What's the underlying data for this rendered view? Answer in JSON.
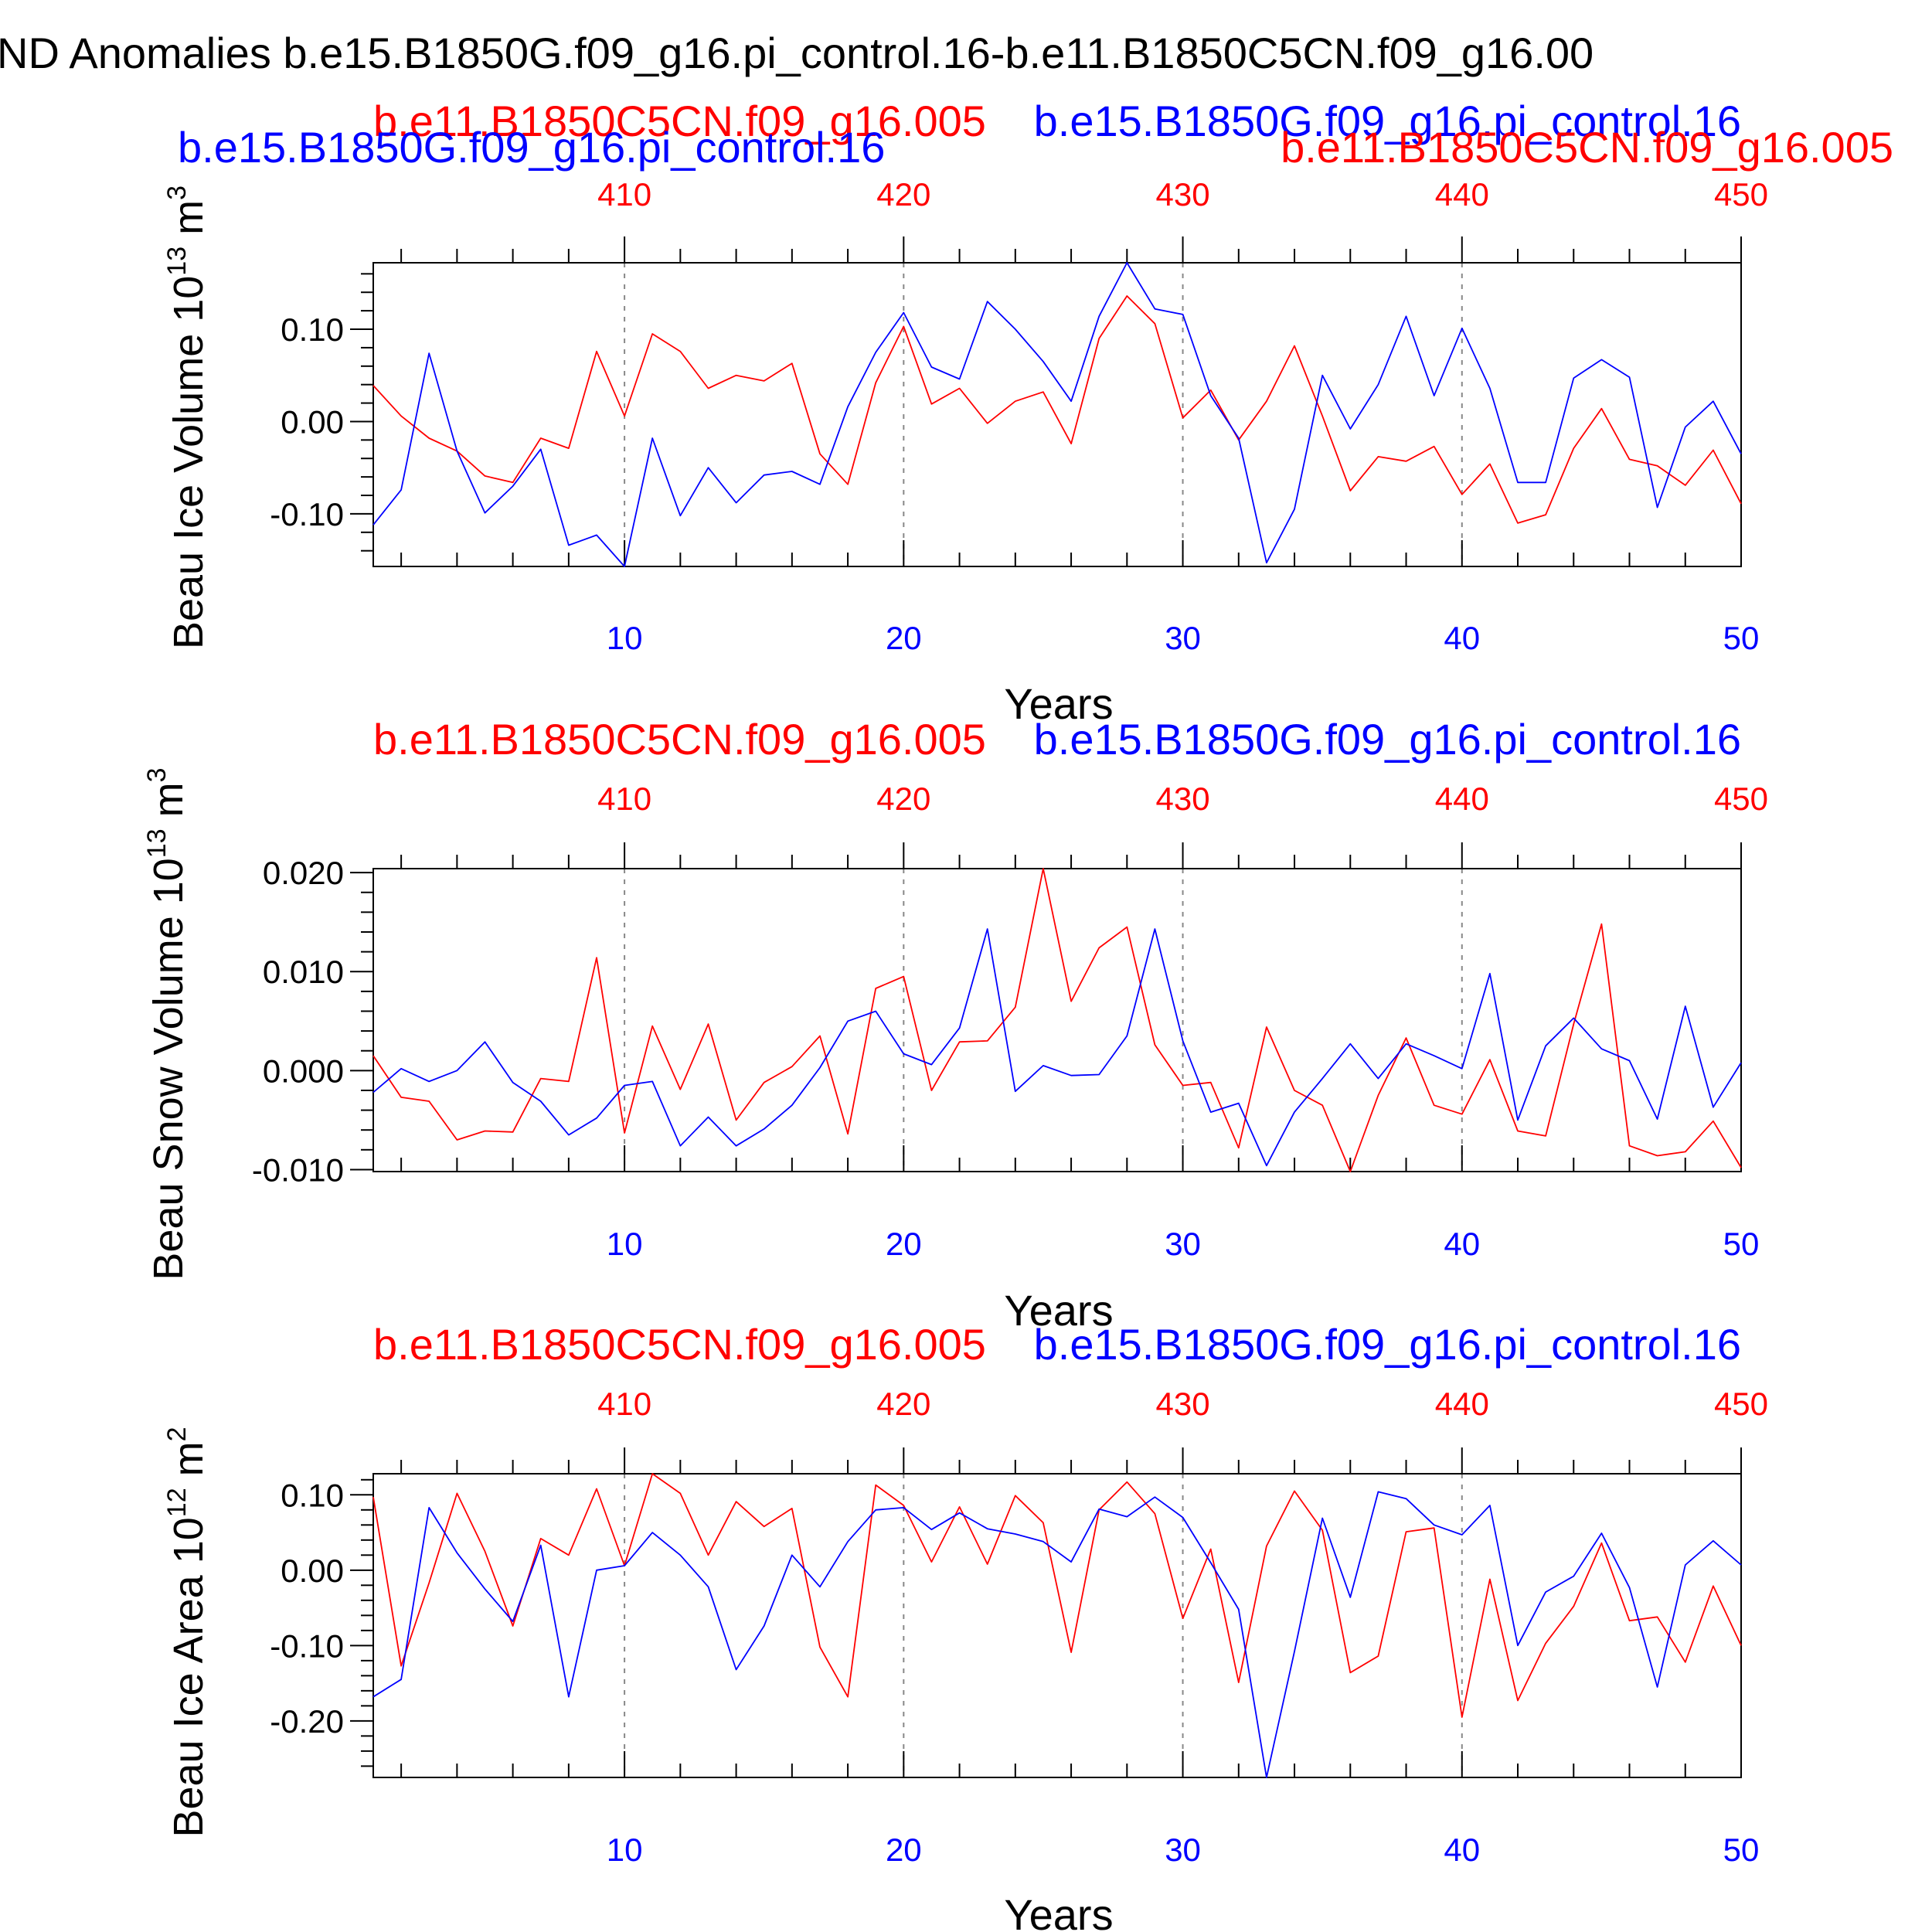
{
  "title": "ND Anomalies b.e15.B1850G.f09_g16.pi_control.16-b.e11.B1850C5CN.f09_g16.00",
  "series_names": {
    "red": "b.e11.B1850C5CN.f09_g16.005",
    "blue": "b.e15.B1850G.f09_g16.pi_control.16"
  },
  "colors": {
    "red": "#ff0000",
    "blue": "#0000ff",
    "axis": "#000000",
    "grid": "#888888"
  },
  "chart_data": [
    {
      "type": "line",
      "ylabel_main": "Beau Ice Volume 10",
      "ylabel_exp": "13",
      "ylabel_unit": " m",
      "ylabel_unit_exp": "3",
      "xlabel": "Years",
      "xlim": [
        1,
        50
      ],
      "ylim": [
        -0.157,
        0.172
      ],
      "x_ticks": [
        10,
        20,
        30,
        40,
        50
      ],
      "x_tick_labels": [
        "10",
        "20",
        "30",
        "40",
        "50"
      ],
      "top_ticks": [
        "410",
        "420",
        "430",
        "440",
        "450"
      ],
      "y_ticks": [
        0.1,
        0.0,
        -0.1
      ],
      "y_tick_labels": [
        "0.10",
        "0.00",
        "-0.10"
      ],
      "grid": "vertical dashed at top-axis ticks",
      "series": [
        {
          "name": "b.e15.B1850G.f09_g16.pi_control.16",
          "color": "blue",
          "values": [
            -0.112,
            -0.074,
            0.074,
            -0.032,
            -0.099,
            -0.07,
            -0.03,
            -0.134,
            -0.123,
            -0.157,
            -0.018,
            -0.102,
            -0.05,
            -0.088,
            -0.058,
            -0.054,
            -0.068,
            0.016,
            0.075,
            0.118,
            0.059,
            0.046,
            0.13,
            0.1,
            0.065,
            0.022,
            0.114,
            0.172,
            0.122,
            0.116,
            0.028,
            -0.018,
            -0.153,
            -0.095,
            0.05,
            -0.008,
            0.04,
            0.114,
            0.028,
            0.101,
            0.036,
            -0.066,
            -0.066,
            0.047,
            0.067,
            0.048,
            -0.093,
            -0.006,
            0.022,
            -0.035
          ]
        },
        {
          "name": "b.e11.B1850C5CN.f09_g16.005",
          "color": "red",
          "values": [
            0.039,
            0.006,
            -0.018,
            -0.032,
            -0.059,
            -0.066,
            -0.018,
            -0.029,
            0.076,
            0.006,
            0.095,
            0.076,
            0.036,
            0.05,
            0.044,
            0.063,
            -0.035,
            -0.068,
            0.042,
            0.103,
            0.019,
            0.036,
            -0.002,
            0.022,
            0.032,
            -0.024,
            0.09,
            0.136,
            0.106,
            0.004,
            0.034,
            -0.02,
            0.022,
            0.082,
            0.006,
            -0.075,
            -0.038,
            -0.043,
            -0.027,
            -0.079,
            -0.046,
            -0.11,
            -0.101,
            -0.029,
            0.014,
            -0.041,
            -0.048,
            -0.069,
            -0.031,
            -0.089
          ]
        }
      ]
    },
    {
      "type": "line",
      "ylabel_main": "Beau Snow Volume 10",
      "ylabel_exp": "13",
      "ylabel_unit": " m",
      "ylabel_unit_exp": "3",
      "xlabel": "Years",
      "xlim": [
        1,
        50
      ],
      "ylim": [
        -0.0102,
        0.0204
      ],
      "x_ticks": [
        10,
        20,
        30,
        40,
        50
      ],
      "x_tick_labels": [
        "10",
        "20",
        "30",
        "40",
        "50"
      ],
      "top_ticks": [
        "410",
        "420",
        "430",
        "440",
        "450"
      ],
      "y_ticks": [
        0.02,
        0.01,
        0.0,
        -0.01
      ],
      "y_tick_labels": [
        "0.020",
        "0.010",
        "0.000",
        "-0.010"
      ],
      "grid": "vertical dashed at top-axis ticks",
      "series": [
        {
          "name": "b.e15.B1850G.f09_g16.pi_control.16",
          "color": "blue",
          "values": [
            -0.0022,
            0.0002,
            -0.0011,
            0.0,
            0.0029,
            -0.0012,
            -0.0031,
            -0.0065,
            -0.0048,
            -0.0015,
            -0.0011,
            -0.0076,
            -0.0047,
            -0.0076,
            -0.0059,
            -0.0035,
            0.0003,
            0.005,
            0.006,
            0.0017,
            0.0006,
            0.0043,
            0.0143,
            -0.0021,
            0.0005,
            -0.0005,
            -0.0004,
            0.0035,
            0.0143,
            0.003,
            -0.0042,
            -0.0033,
            -0.0096,
            -0.0042,
            -0.0008,
            0.0027,
            -0.0008,
            0.0027,
            0.0015,
            0.0002,
            0.0098,
            -0.005,
            0.0025,
            0.0053,
            0.0022,
            0.001,
            -0.0049,
            0.0065,
            -0.0037,
            0.0008
          ]
        },
        {
          "name": "b.e11.B1850C5CN.f09_g16.005",
          "color": "red",
          "values": [
            0.0015,
            -0.0027,
            -0.0031,
            -0.007,
            -0.0061,
            -0.0062,
            -0.0008,
            -0.0011,
            0.0114,
            -0.0063,
            0.0045,
            -0.0019,
            0.0047,
            -0.005,
            -0.0012,
            0.0004,
            0.0035,
            -0.0064,
            0.0083,
            0.0095,
            -0.002,
            0.0029,
            0.003,
            0.0064,
            0.0204,
            0.007,
            0.0124,
            0.0145,
            0.0026,
            -0.0015,
            -0.0012,
            -0.0078,
            0.0044,
            -0.002,
            -0.0035,
            -0.0102,
            -0.0025,
            0.0033,
            -0.0035,
            -0.0044,
            0.0011,
            -0.0061,
            -0.0066,
            0.0047,
            0.0148,
            -0.0076,
            -0.0086,
            -0.0082,
            -0.0051,
            -0.0098
          ]
        }
      ]
    },
    {
      "type": "line",
      "ylabel_main": "Beau Ice Area 10",
      "ylabel_exp": "12",
      "ylabel_unit": " m",
      "ylabel_unit_exp": "2",
      "xlabel": "Years",
      "xlim": [
        1,
        50
      ],
      "ylim": [
        -0.275,
        0.128
      ],
      "x_ticks": [
        10,
        20,
        30,
        40,
        50
      ],
      "x_tick_labels": [
        "10",
        "20",
        "30",
        "40",
        "50"
      ],
      "top_ticks": [
        "410",
        "420",
        "430",
        "440",
        "450"
      ],
      "y_ticks": [
        0.1,
        0.0,
        -0.1,
        -0.2
      ],
      "y_tick_labels": [
        "0.10",
        "0.00",
        "-0.10",
        "-0.20"
      ],
      "grid": "vertical dashed at top-axis ticks",
      "series": [
        {
          "name": "b.e15.B1850G.f09_g16.pi_control.16",
          "color": "blue",
          "values": [
            -0.168,
            -0.145,
            0.083,
            0.023,
            -0.025,
            -0.068,
            0.033,
            -0.168,
            0.0,
            0.006,
            0.05,
            0.02,
            -0.022,
            -0.132,
            -0.074,
            0.02,
            -0.022,
            0.038,
            0.08,
            0.083,
            0.054,
            0.076,
            0.055,
            0.048,
            0.038,
            0.011,
            0.081,
            0.071,
            0.097,
            0.07,
            0.01,
            -0.052,
            -0.275,
            -0.108,
            0.069,
            -0.036,
            0.104,
            0.095,
            0.06,
            0.047,
            0.086,
            -0.1,
            -0.029,
            -0.008,
            0.049,
            -0.023,
            -0.155,
            0.007,
            0.039,
            0.007
          ]
        },
        {
          "name": "b.e11.B1850C5CN.f09_g16.005",
          "color": "red",
          "values": [
            0.097,
            -0.127,
            -0.017,
            0.102,
            0.025,
            -0.074,
            0.042,
            0.02,
            0.108,
            0.006,
            0.128,
            0.102,
            0.02,
            0.091,
            0.058,
            0.082,
            -0.102,
            -0.168,
            0.113,
            0.086,
            0.011,
            0.084,
            0.008,
            0.099,
            0.063,
            -0.109,
            0.08,
            0.117,
            0.075,
            -0.064,
            0.028,
            -0.149,
            0.032,
            0.105,
            0.053,
            -0.136,
            -0.114,
            0.051,
            0.056,
            -0.195,
            -0.012,
            -0.173,
            -0.097,
            -0.048,
            0.036,
            -0.067,
            -0.062,
            -0.122,
            -0.021,
            -0.1
          ]
        }
      ]
    }
  ]
}
